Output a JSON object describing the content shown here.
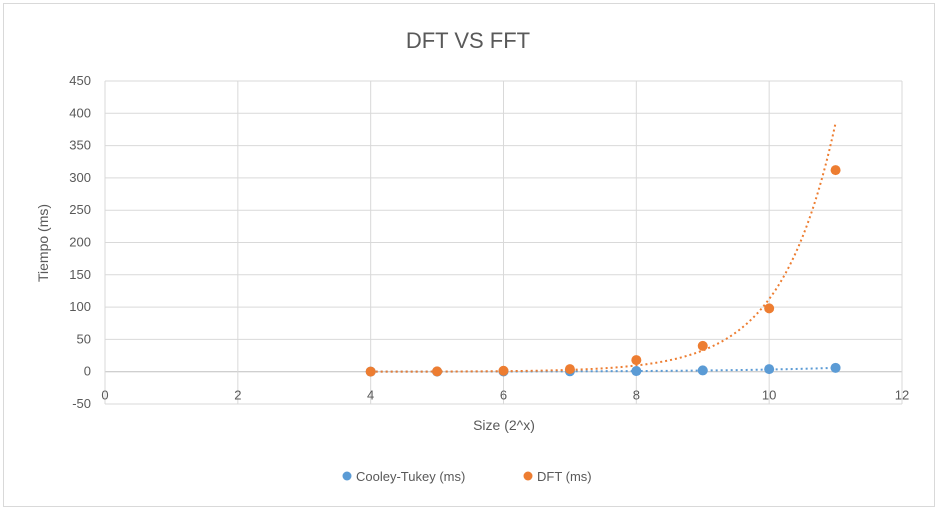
{
  "chart_data": {
    "type": "scatter",
    "title": "DFT VS FFT",
    "xlabel": "Size (2^x)",
    "ylabel": "Tiempo (ms)",
    "xlim": [
      0,
      12
    ],
    "ylim": [
      -50,
      450
    ],
    "x_ticks": [
      0,
      2,
      4,
      6,
      8,
      10,
      12
    ],
    "y_ticks": [
      -50,
      0,
      50,
      100,
      150,
      200,
      250,
      300,
      350,
      400,
      450
    ],
    "grid": true,
    "legend_position": "bottom",
    "trendline": "exponential",
    "series": [
      {
        "name": "Cooley-Tukey (ms)",
        "color": "#5b9bd5",
        "x": [
          4,
          5,
          6,
          7,
          8,
          9,
          10,
          11
        ],
        "y": [
          0.1,
          0.2,
          0.4,
          0.6,
          1,
          2,
          4,
          6
        ],
        "trend_x": [
          4,
          11
        ],
        "trend_y": [
          0.1,
          6
        ]
      },
      {
        "name": "DFT (ms)",
        "color": "#ed7d31",
        "x": [
          4,
          5,
          6,
          7,
          8,
          9,
          10,
          11
        ],
        "y": [
          0.2,
          0.5,
          1.5,
          4,
          18,
          40,
          98,
          312
        ],
        "trend_x": [
          4,
          11
        ],
        "trend_y": [
          0.07,
          385
        ]
      }
    ]
  }
}
